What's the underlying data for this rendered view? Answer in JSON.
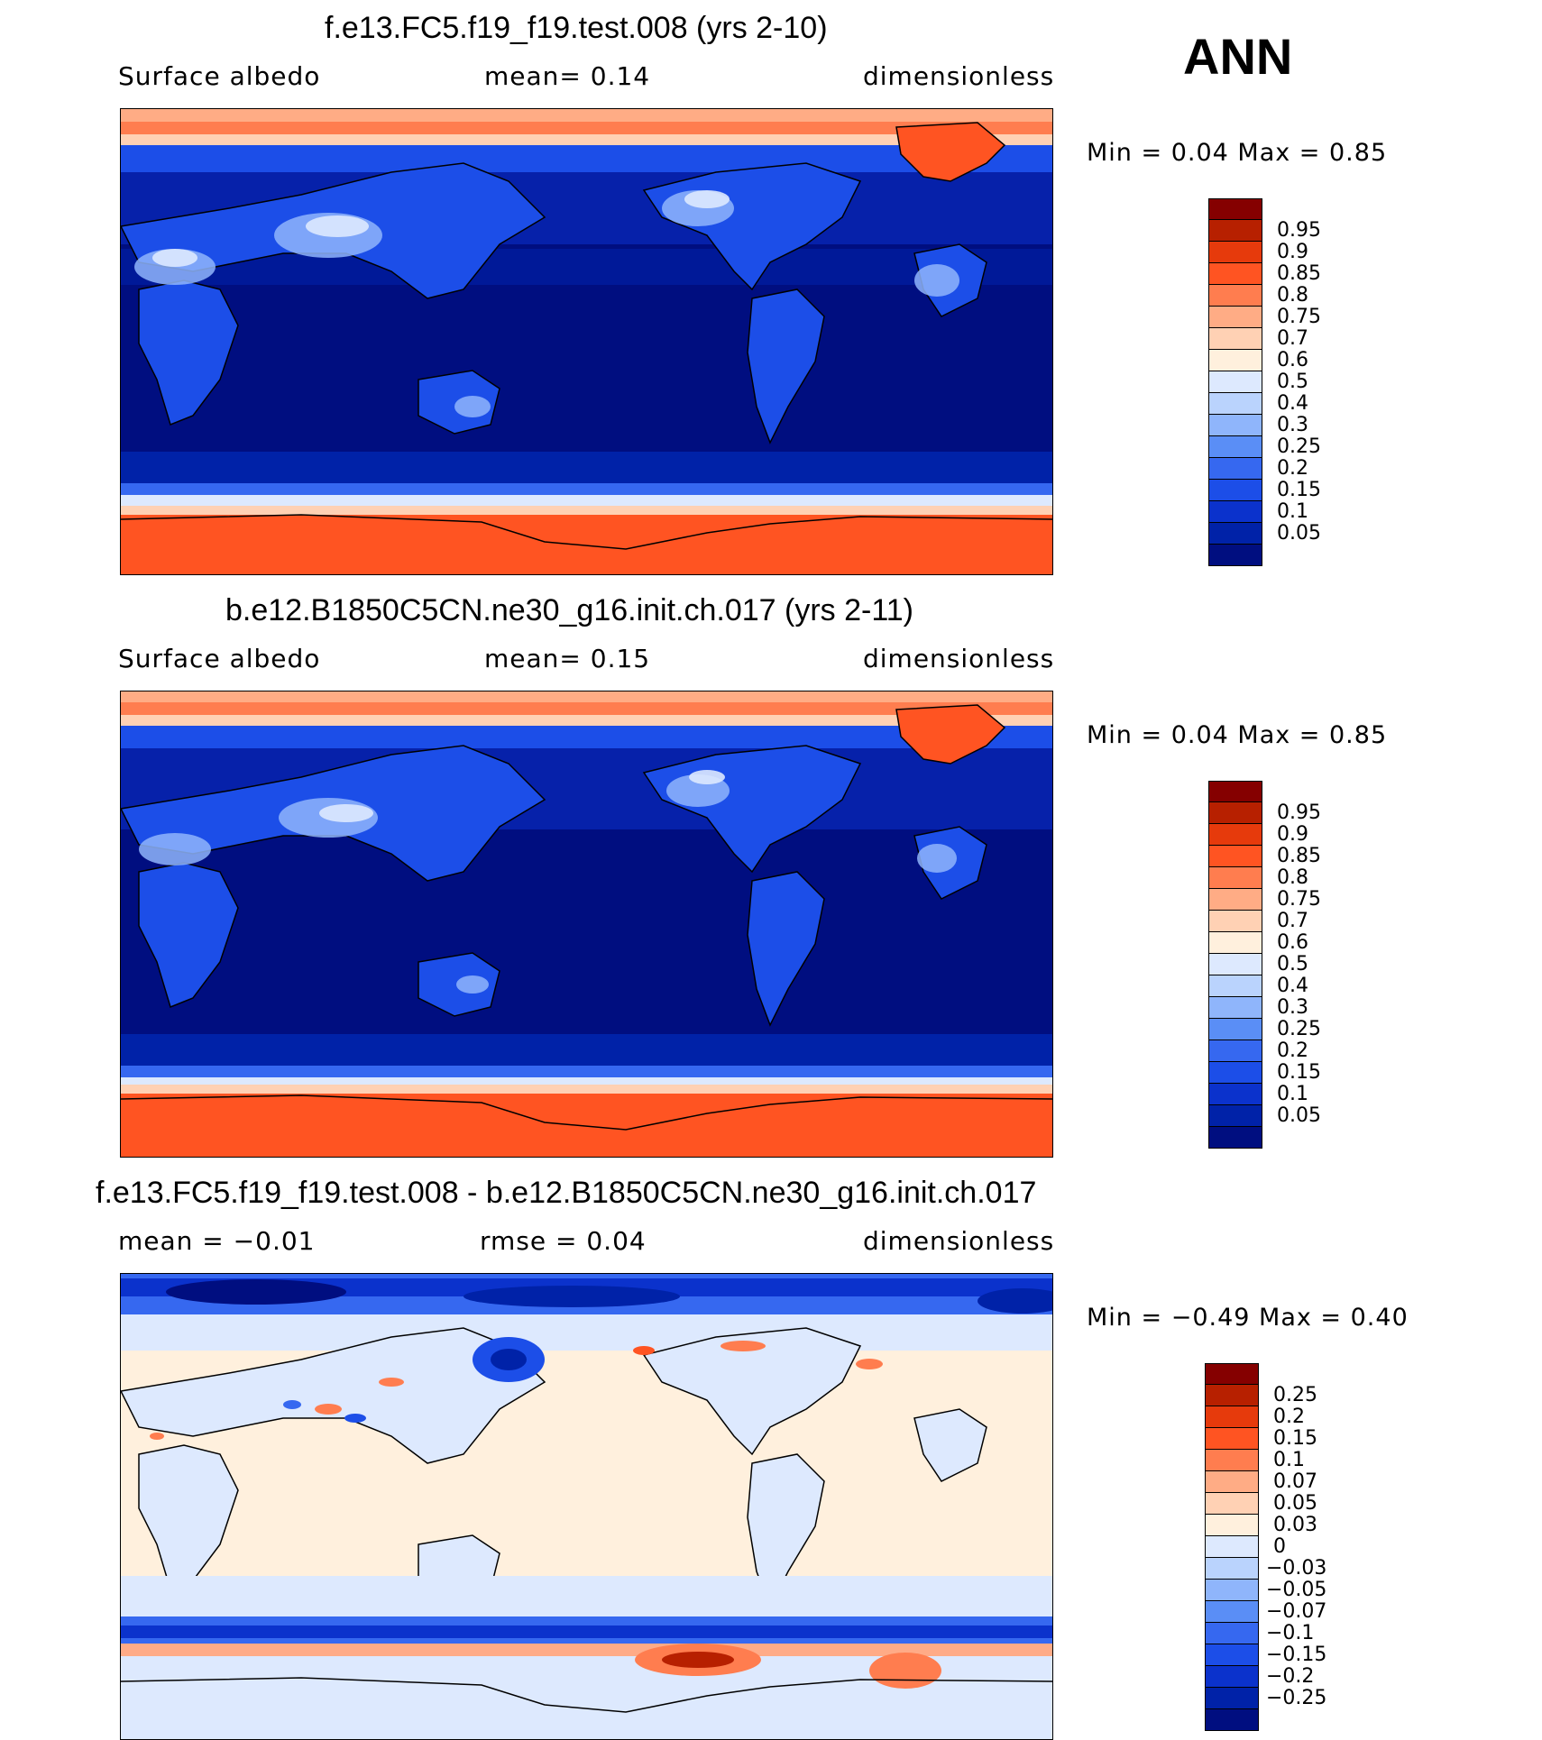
{
  "season": "ANN",
  "colors": {
    "abs": [
      "#000e80",
      "#0022a8",
      "#0b32cc",
      "#1c4ee8",
      "#3668f0",
      "#5a8ef6",
      "#8fb5fb",
      "#bad3fd",
      "#dde9fe",
      "#fff0dd",
      "#ffd1b4",
      "#ffac85",
      "#ff7d4f",
      "#ff5422",
      "#e63a0c",
      "#b72000",
      "#850000"
    ],
    "diff": [
      "#000e80",
      "#0022a8",
      "#0b32cc",
      "#1c4ee8",
      "#3668f0",
      "#5a8ef6",
      "#8fb5fb",
      "#bad3fd",
      "#dde9fe",
      "#fff0dd",
      "#ffd1b4",
      "#ffac85",
      "#ff7d4f",
      "#ff5422",
      "#e63a0c",
      "#b72000",
      "#850000"
    ],
    "coastline": "#000000"
  },
  "panels": [
    {
      "title": "f.e13.FC5.f19_f19.test.008 (yrs 2-10)",
      "left_label": "Surface  albedo",
      "mid_label": "mean=    0.14",
      "right_label": "dimensionless",
      "minmax": "Min  =     0.04  Max  =     0.85",
      "colorbar_labels": [
        "0.95",
        "0.9",
        "0.85",
        "0.8",
        "0.75",
        "0.7",
        "0.6",
        "0.5",
        "0.4",
        "0.3",
        "0.25",
        "0.2",
        "0.15",
        "0.1",
        "0.05"
      ]
    },
    {
      "title": "b.e12.B1850C5CN.ne30_g16.init.ch.017 (yrs 2-11)",
      "left_label": "Surface  albedo",
      "mid_label": "mean=    0.15",
      "right_label": "dimensionless",
      "minmax": "Min  =     0.04  Max  =     0.85",
      "colorbar_labels": [
        "0.95",
        "0.9",
        "0.85",
        "0.8",
        "0.75",
        "0.7",
        "0.6",
        "0.5",
        "0.4",
        "0.3",
        "0.25",
        "0.2",
        "0.15",
        "0.1",
        "0.05"
      ]
    },
    {
      "title": "f.e13.FC5.f19_f19.test.008 - b.e12.B1850C5CN.ne30_g16.init.ch.017",
      "left_label": "mean  =    −0.01",
      "mid_label": "rmse  =     0.04",
      "right_label": "dimensionless",
      "minmax": "Min  =   −0.49  Max  =     0.40",
      "colorbar_labels": [
        "0.25",
        "0.2",
        "0.15",
        "0.1",
        "0.07",
        "0.05",
        "0.03",
        "0",
        "−0.03",
        "−0.05",
        "−0.07",
        "−0.1",
        "−0.15",
        "−0.2",
        "−0.25"
      ]
    }
  ]
}
